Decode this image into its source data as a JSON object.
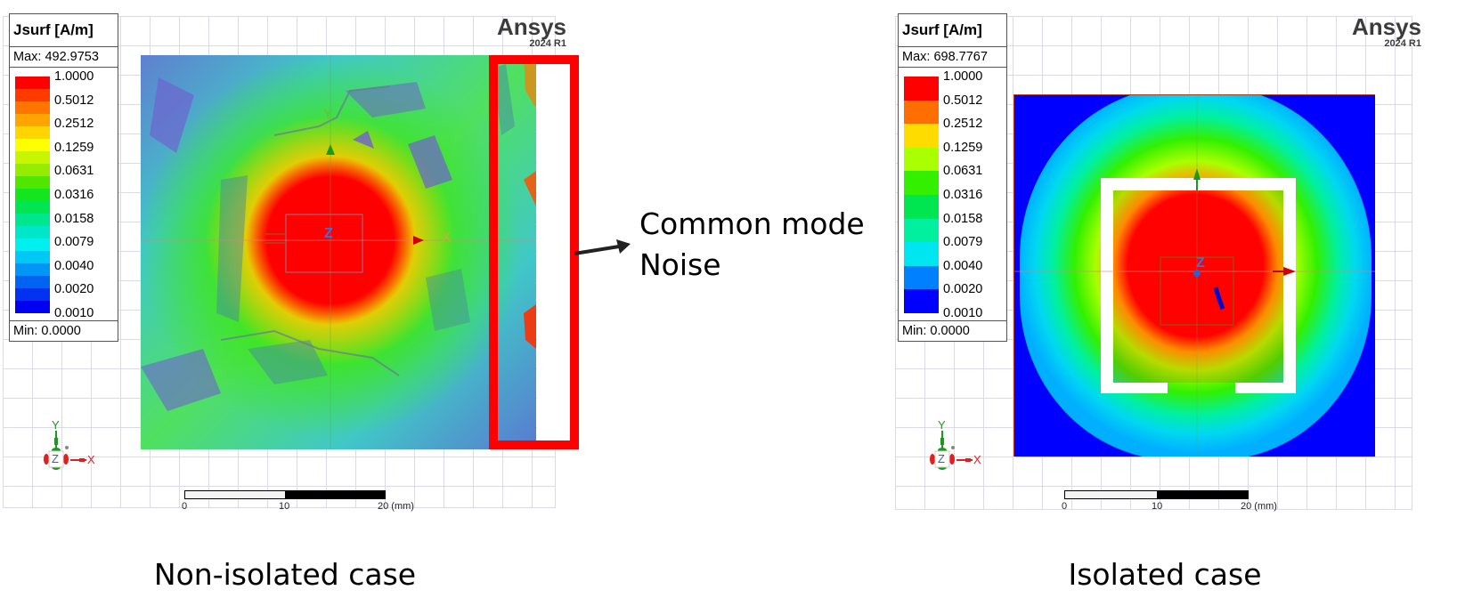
{
  "panels": [
    {
      "id": "non-isolated",
      "legend": {
        "title": "Jsurf [A/m]",
        "max": "Max: 492.9753",
        "min": "Min: 0.0000",
        "ticks": [
          "1.0000",
          "0.5012",
          "0.2512",
          "0.1259",
          "0.0631",
          "0.0316",
          "0.0158",
          "0.0079",
          "0.0040",
          "0.0020",
          "0.0010"
        ],
        "colors": [
          "#ff0000",
          "#ff3a00",
          "#ff7500",
          "#ffa400",
          "#ffd400",
          "#ffff00",
          "#c8f500",
          "#96eb00",
          "#50e600",
          "#14e61e",
          "#00e650",
          "#00e68c",
          "#00e6c8",
          "#00f0f0",
          "#00c8f5",
          "#0096f5",
          "#0064f0",
          "#0032f0",
          "#0000f0"
        ]
      },
      "logo": {
        "name": "Ansys",
        "version": "2024 R1"
      },
      "scale": {
        "labels": [
          "0",
          "10",
          "20 (mm)"
        ]
      },
      "triad": {
        "x": "X",
        "y": "Y",
        "z": "Z"
      },
      "axis_labels": {
        "x": "X",
        "y": "Y",
        "z": "Z"
      },
      "caption": "Non-isolated case"
    },
    {
      "id": "isolated",
      "legend": {
        "title": "Jsurf [A/m]",
        "max": "Max: 698.7767",
        "min": "Min: 0.0000",
        "ticks": [
          "1.0000",
          "0.5012",
          "0.2512",
          "0.1259",
          "0.0631",
          "0.0316",
          "0.0158",
          "0.0079",
          "0.0040",
          "0.0020",
          "0.0010"
        ],
        "colors": [
          "#ff0000",
          "#ff6e00",
          "#ffdc00",
          "#aaff00",
          "#33f000",
          "#00e650",
          "#00f0a0",
          "#00e6f0",
          "#0080ff",
          "#0000ff"
        ]
      },
      "logo": {
        "name": "Ansys",
        "version": "2024 R1"
      },
      "scale": {
        "labels": [
          "0",
          "10",
          "20 (mm)"
        ]
      },
      "triad": {
        "x": "X",
        "y": "Y",
        "z": "Z"
      },
      "axis_labels": {
        "z": "Z"
      },
      "caption": "Isolated case"
    }
  ],
  "annotation": {
    "line1": "Common mode",
    "line2": "Noise",
    "highlight_color": "#ff0000"
  }
}
